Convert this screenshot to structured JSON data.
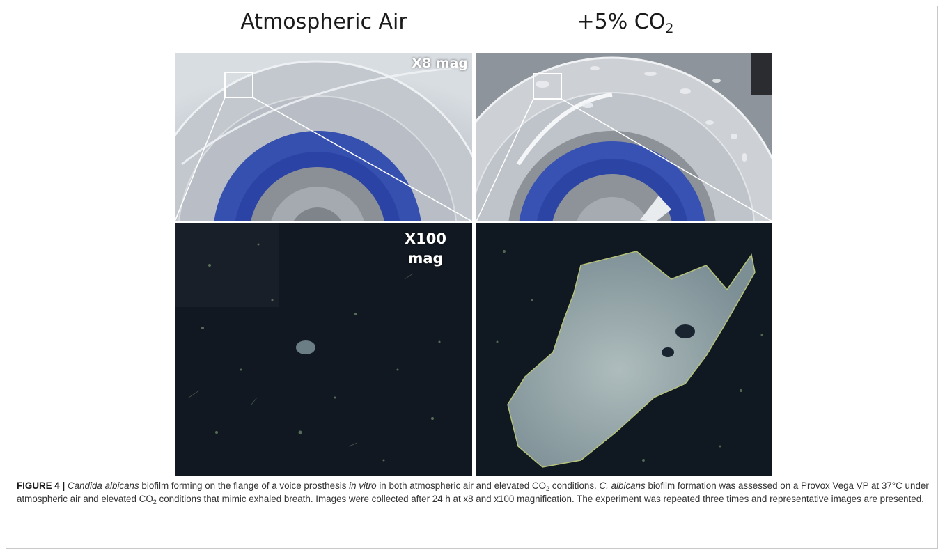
{
  "figure": {
    "titles": {
      "left": "Atmospheric Air",
      "right_prefix": "+5% CO",
      "right_sub": "2"
    },
    "mag_labels": {
      "top": "X8 mag",
      "bottom_line1": "X100",
      "bottom_line2": "mag"
    },
    "panels": [
      {
        "name": "atmospheric-x8",
        "condition": "Atmospheric Air",
        "magnification": "X8 mag"
      },
      {
        "name": "co2-x8",
        "condition": "+5% CO2",
        "magnification": "X8 mag"
      },
      {
        "name": "atmospheric-x100",
        "condition": "Atmospheric Air",
        "magnification": "X100 mag"
      },
      {
        "name": "co2-x100",
        "condition": "+5% CO2",
        "magnification": "X100 mag"
      }
    ]
  },
  "caption": {
    "label": "FIGURE 4 |",
    "p1": "Candida albicans",
    "p2": " biofilm forming on the flange of a voice prosthesis ",
    "p3": "in vitro",
    "p4": " in both atmospheric air and elevated CO",
    "p5": "2",
    "p6": " conditions. ",
    "p7": "C. albicans",
    "p8": " biofilm formation was assessed on a Provox Vega VP at 37°C under atmospheric air and elevated CO",
    "p9": "2",
    "p10": " conditions that mimic exhaled breath. Images were collected after 24 h at x8 and x100 magnification. The experiment was repeated three times and representative images are presented."
  },
  "colors": {
    "prosthesis_blue": "#2c46a8",
    "dark_field": "#101822",
    "biofilm": "#8fa3a6"
  }
}
